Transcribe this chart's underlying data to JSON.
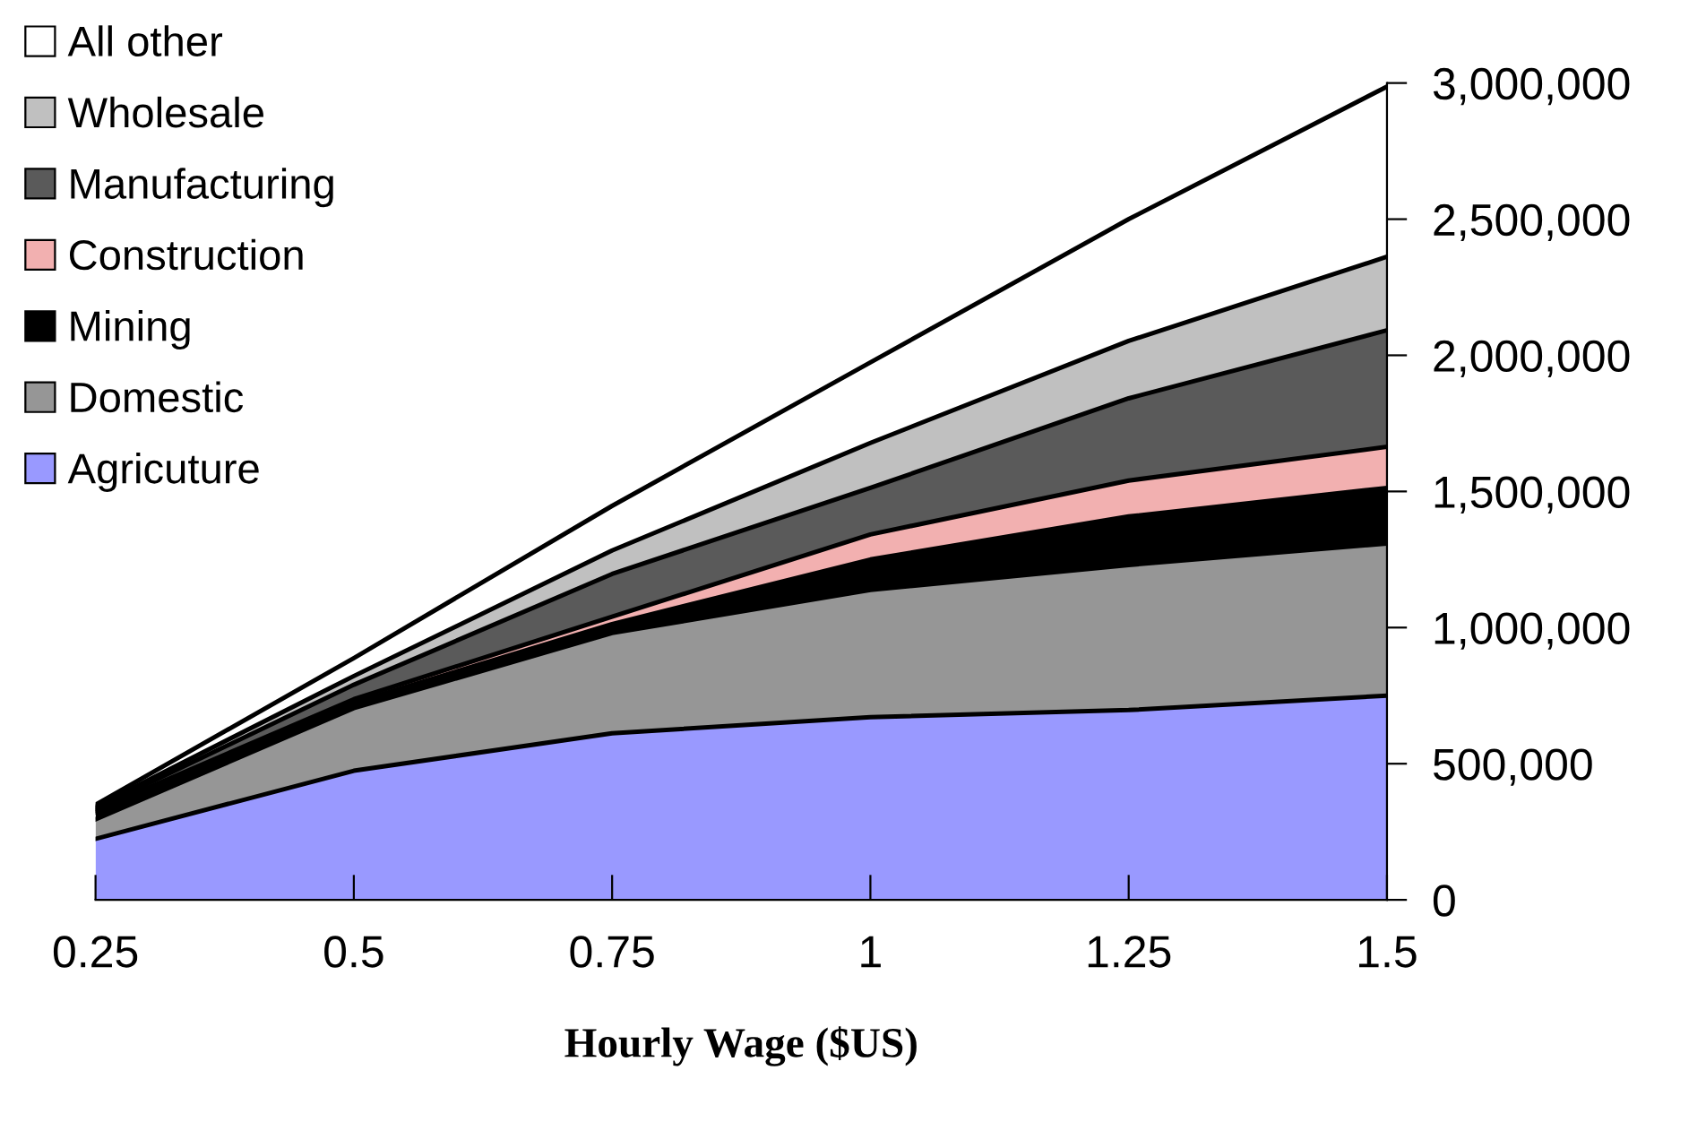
{
  "chart_data": {
    "type": "area",
    "stacked": true,
    "xlabel": "Hourly Wage ($US)",
    "x": [
      0.25,
      0.5,
      0.75,
      1,
      1.25,
      1.5
    ],
    "series": [
      {
        "name": "Agricuture",
        "color": "#9999ff",
        "values": [
          224000,
          474000,
          612000,
          671000,
          697000,
          750000
        ]
      },
      {
        "name": "Domestic",
        "color": "#969696",
        "values": [
          72000,
          230000,
          368000,
          467000,
          533000,
          559000
        ]
      },
      {
        "name": "Mining",
        "color": "#000000",
        "values": [
          26000,
          20000,
          33000,
          112000,
          178000,
          204000
        ]
      },
      {
        "name": "Construction",
        "color": "#f2b0b0",
        "values": [
          7000,
          13000,
          27000,
          92000,
          132000,
          151000
        ]
      },
      {
        "name": "Manufacturing",
        "color": "#5a5a5a",
        "values": [
          6000,
          53000,
          157000,
          171000,
          302000,
          428000
        ]
      },
      {
        "name": "Wholesale",
        "color": "#c0c0c0",
        "values": [
          7000,
          32000,
          86000,
          165000,
          211000,
          270000
        ]
      },
      {
        "name": "All other",
        "color": "#ffffff",
        "values": [
          7000,
          66000,
          164000,
          296000,
          447000,
          625000
        ]
      }
    ],
    "xlim": [
      0.25,
      1.5
    ],
    "xticks": [
      0.25,
      0.5,
      0.75,
      1,
      1.25,
      1.5
    ],
    "ylim": [
      0,
      3000000
    ],
    "yticks": [
      0,
      {
        "value": 500000,
        "label": "500,000"
      },
      {
        "value": 1000000,
        "label": "1,000,000"
      },
      {
        "value": 1500000,
        "label": "1,500,000"
      },
      {
        "value": 2000000,
        "label": "2,000,000"
      },
      {
        "value": 2500000,
        "label": "2,500,000"
      },
      {
        "value": 3000000,
        "label": "3,000,000"
      }
    ],
    "grid": false,
    "legend": "top left"
  }
}
